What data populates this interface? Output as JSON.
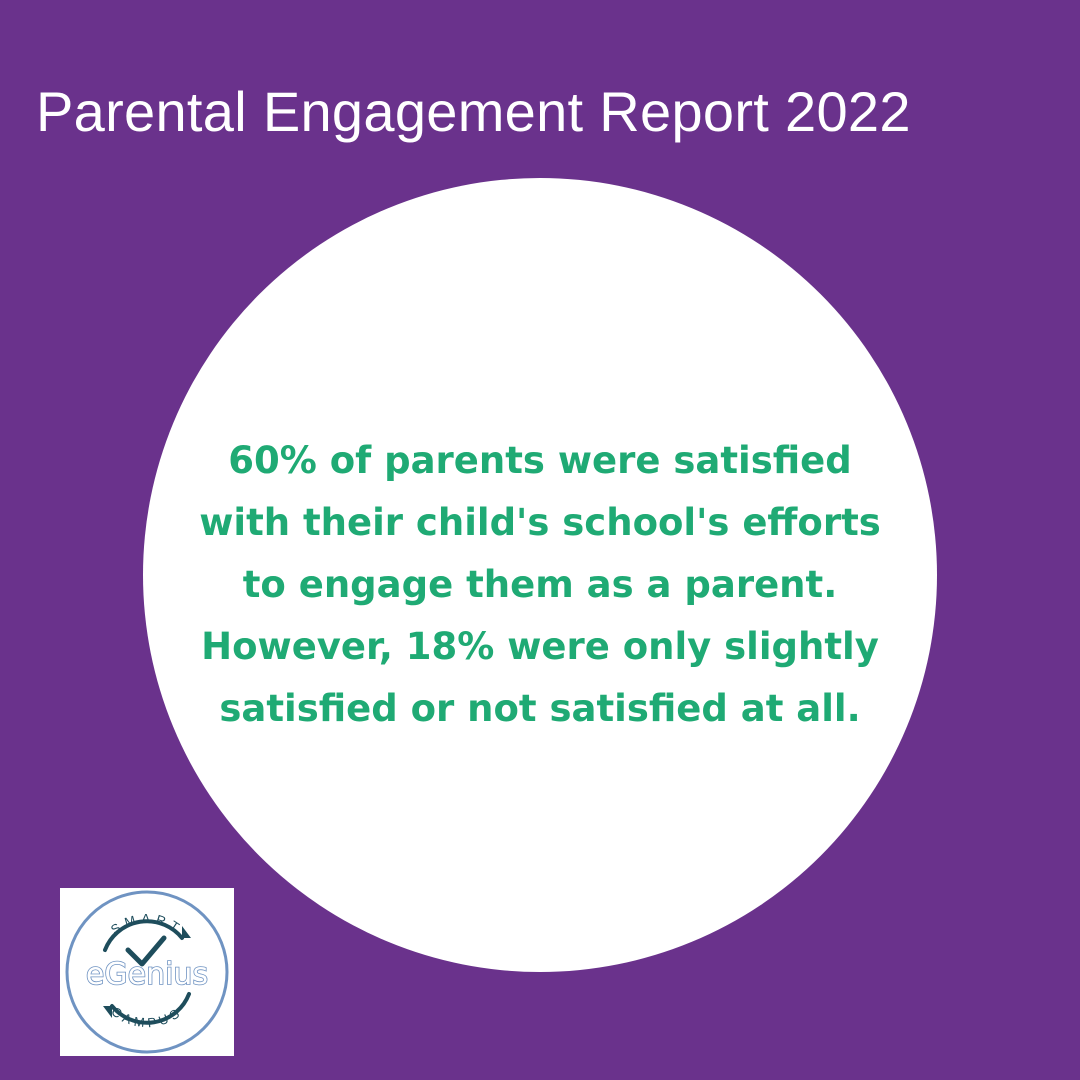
{
  "title": "Parental Engagement Report 2022",
  "statement": "60% of parents were satisfied with their child's school's efforts to engage them as a parent. However, 18% were only slightly satisfied or not satisfied at all.",
  "logo": {
    "icon": "egenius-smart-campus-logo",
    "brand_text": "eGenius",
    "top_text": "SMART",
    "bottom_text": "CAMPUS"
  },
  "colors": {
    "background": "#6a328c",
    "circle": "#ffffff",
    "statement_text": "#1faa74",
    "title_text": "#ffffff",
    "logo_ring": "#6f93c2",
    "logo_arrow": "#1e4d5c"
  }
}
